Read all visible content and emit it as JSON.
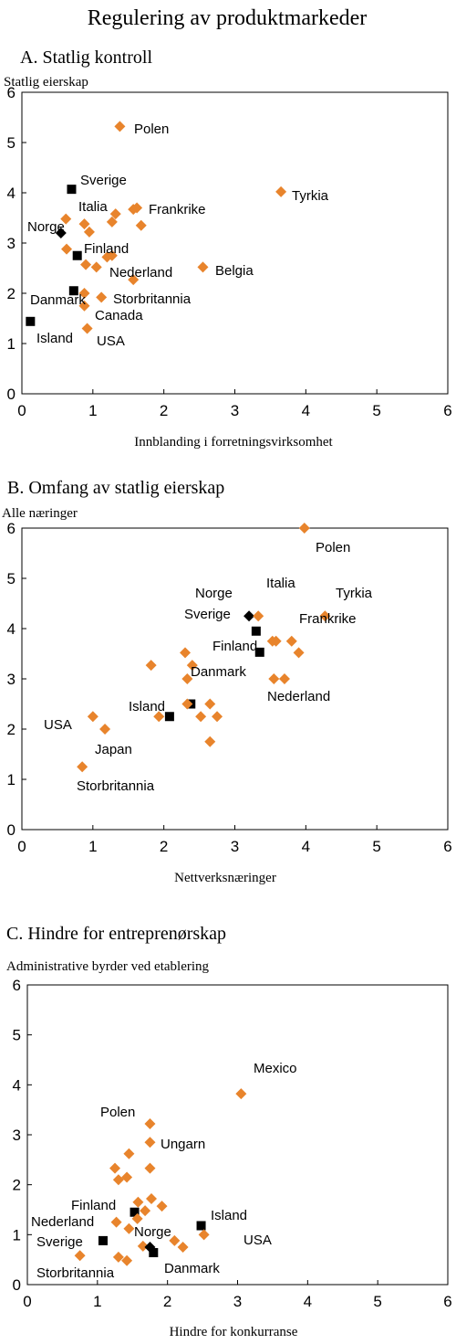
{
  "title": "Regulering av produktmarkeder",
  "colors": {
    "orange": "#E8842C",
    "black": "#000000"
  },
  "chart_data": [
    {
      "type": "scatter",
      "title": "A. Statlig kontroll",
      "ylabel": "Statlig eierskap",
      "xlabel": "Innblanding i forretningsvirksomhet",
      "xlim": [
        0,
        6
      ],
      "ylim": [
        0,
        6
      ],
      "xticks": [
        0,
        1,
        2,
        3,
        4,
        5,
        6
      ],
      "yticks": [
        0,
        1,
        2,
        3,
        4,
        5,
        6
      ],
      "points": [
        {
          "x": 1.38,
          "y": 5.32,
          "color": "orange",
          "marker": "diamond",
          "label": "Polen"
        },
        {
          "x": 3.65,
          "y": 4.02,
          "color": "orange",
          "marker": "diamond",
          "label": "Tyrkia"
        },
        {
          "x": 0.7,
          "y": 4.07,
          "color": "black",
          "marker": "square",
          "label": "Sverige"
        },
        {
          "x": 0.62,
          "y": 3.48,
          "color": "orange",
          "marker": "diamond"
        },
        {
          "x": 0.88,
          "y": 3.38,
          "color": "orange",
          "marker": "diamond",
          "label": "Italia"
        },
        {
          "x": 0.95,
          "y": 3.22,
          "color": "orange",
          "marker": "diamond"
        },
        {
          "x": 0.55,
          "y": 3.2,
          "color": "black",
          "marker": "diamond",
          "label": "Norge"
        },
        {
          "x": 1.32,
          "y": 3.58,
          "color": "orange",
          "marker": "diamond"
        },
        {
          "x": 1.27,
          "y": 3.42,
          "color": "orange",
          "marker": "diamond"
        },
        {
          "x": 1.57,
          "y": 3.67,
          "color": "orange",
          "marker": "diamond",
          "label": "Frankrike"
        },
        {
          "x": 1.62,
          "y": 3.7,
          "color": "orange",
          "marker": "diamond"
        },
        {
          "x": 1.68,
          "y": 3.35,
          "color": "orange",
          "marker": "diamond"
        },
        {
          "x": 0.63,
          "y": 2.88,
          "color": "orange",
          "marker": "diamond"
        },
        {
          "x": 0.78,
          "y": 2.75,
          "color": "black",
          "marker": "square",
          "label": "Finland"
        },
        {
          "x": 0.9,
          "y": 2.57,
          "color": "orange",
          "marker": "diamond"
        },
        {
          "x": 1.05,
          "y": 2.52,
          "color": "orange",
          "marker": "diamond"
        },
        {
          "x": 1.2,
          "y": 2.72,
          "color": "orange",
          "marker": "diamond"
        },
        {
          "x": 1.27,
          "y": 2.75,
          "color": "orange",
          "marker": "diamond",
          "label": "Nederland"
        },
        {
          "x": 2.55,
          "y": 2.52,
          "color": "orange",
          "marker": "diamond",
          "label": "Belgia"
        },
        {
          "x": 1.57,
          "y": 2.27,
          "color": "orange",
          "marker": "diamond"
        },
        {
          "x": 0.73,
          "y": 2.05,
          "color": "black",
          "marker": "square",
          "label": "Danmark"
        },
        {
          "x": 0.88,
          "y": 2.0,
          "color": "orange",
          "marker": "diamond"
        },
        {
          "x": 1.12,
          "y": 1.92,
          "color": "orange",
          "marker": "diamond",
          "label": "Storbritannia"
        },
        {
          "x": 0.88,
          "y": 1.75,
          "color": "orange",
          "marker": "diamond",
          "label": "Canada"
        },
        {
          "x": 0.12,
          "y": 1.44,
          "color": "black",
          "marker": "square",
          "label": "Island"
        },
        {
          "x": 0.92,
          "y": 1.3,
          "color": "orange",
          "marker": "diamond",
          "label": "USA"
        }
      ]
    },
    {
      "type": "scatter",
      "title": "B. Omfang av statlig eierskap",
      "ylabel": "Alle næringer",
      "xlabel": "Nettverksnæringer",
      "xlim": [
        0,
        6
      ],
      "ylim": [
        0,
        6
      ],
      "xticks": [
        0,
        1,
        2,
        3,
        4,
        5,
        6
      ],
      "yticks": [
        0,
        1,
        2,
        3,
        4,
        5,
        6
      ],
      "points": [
        {
          "x": 3.98,
          "y": 6.0,
          "color": "orange",
          "marker": "diamond",
          "label": "Polen"
        },
        {
          "x": 3.2,
          "y": 4.25,
          "color": "black",
          "marker": "diamond",
          "label": "Norge"
        },
        {
          "x": 3.33,
          "y": 4.25,
          "color": "orange",
          "marker": "diamond",
          "label": "Italia"
        },
        {
          "x": 4.27,
          "y": 4.25,
          "color": "orange",
          "marker": "diamond",
          "label": "Tyrkia"
        },
        {
          "x": 3.3,
          "y": 3.95,
          "color": "black",
          "marker": "square",
          "label": "Sverige"
        },
        {
          "x": 3.53,
          "y": 3.75,
          "color": "orange",
          "marker": "diamond"
        },
        {
          "x": 3.58,
          "y": 3.75,
          "color": "orange",
          "marker": "diamond"
        },
        {
          "x": 3.8,
          "y": 3.75,
          "color": "orange",
          "marker": "diamond",
          "label": "Frankrike"
        },
        {
          "x": 3.9,
          "y": 3.52,
          "color": "orange",
          "marker": "diamond"
        },
        {
          "x": 3.35,
          "y": 3.53,
          "color": "black",
          "marker": "square",
          "label": "Finland"
        },
        {
          "x": 1.82,
          "y": 3.27,
          "color": "orange",
          "marker": "diamond"
        },
        {
          "x": 2.3,
          "y": 3.52,
          "color": "orange",
          "marker": "diamond"
        },
        {
          "x": 2.4,
          "y": 3.27,
          "color": "orange",
          "marker": "diamond"
        },
        {
          "x": 2.33,
          "y": 3.0,
          "color": "orange",
          "marker": "diamond"
        },
        {
          "x": 3.55,
          "y": 3.0,
          "color": "orange",
          "marker": "diamond",
          "label": "Nederland"
        },
        {
          "x": 3.7,
          "y": 3.0,
          "color": "orange",
          "marker": "diamond"
        },
        {
          "x": 2.38,
          "y": 2.5,
          "color": "black",
          "marker": "square",
          "label": "Danmark"
        },
        {
          "x": 2.33,
          "y": 2.5,
          "color": "orange",
          "marker": "diamond"
        },
        {
          "x": 2.65,
          "y": 2.5,
          "color": "orange",
          "marker": "diamond"
        },
        {
          "x": 2.08,
          "y": 2.25,
          "color": "black",
          "marker": "square",
          "label": "Island"
        },
        {
          "x": 1.93,
          "y": 2.25,
          "color": "orange",
          "marker": "diamond"
        },
        {
          "x": 2.52,
          "y": 2.25,
          "color": "orange",
          "marker": "diamond"
        },
        {
          "x": 2.75,
          "y": 2.25,
          "color": "orange",
          "marker": "diamond"
        },
        {
          "x": 2.65,
          "y": 1.75,
          "color": "orange",
          "marker": "diamond"
        },
        {
          "x": 1.0,
          "y": 2.25,
          "color": "orange",
          "marker": "diamond",
          "label": "USA"
        },
        {
          "x": 1.17,
          "y": 2.0,
          "color": "orange",
          "marker": "diamond",
          "label": "Japan"
        },
        {
          "x": 0.85,
          "y": 1.25,
          "color": "orange",
          "marker": "diamond",
          "label": "Storbritannia"
        }
      ]
    },
    {
      "type": "scatter",
      "title": "C. Hindre for entreprenørskap",
      "ylabel": "Administrative byrder ved etablering",
      "xlabel": "Hindre for konkurranse",
      "xlim": [
        0,
        6
      ],
      "ylim": [
        0,
        6
      ],
      "xticks": [
        0,
        1,
        2,
        3,
        4,
        5,
        6
      ],
      "yticks": [
        0,
        1,
        2,
        3,
        4,
        5,
        6
      ],
      "points": [
        {
          "x": 3.05,
          "y": 3.82,
          "color": "orange",
          "marker": "diamond",
          "label": "Mexico"
        },
        {
          "x": 1.75,
          "y": 3.22,
          "color": "orange",
          "marker": "diamond",
          "label": "Polen"
        },
        {
          "x": 1.75,
          "y": 2.85,
          "color": "orange",
          "marker": "diamond",
          "label": "Ungarn"
        },
        {
          "x": 1.45,
          "y": 2.62,
          "color": "orange",
          "marker": "diamond"
        },
        {
          "x": 1.25,
          "y": 2.33,
          "color": "orange",
          "marker": "diamond"
        },
        {
          "x": 1.75,
          "y": 2.33,
          "color": "orange",
          "marker": "diamond"
        },
        {
          "x": 1.3,
          "y": 2.1,
          "color": "orange",
          "marker": "diamond"
        },
        {
          "x": 1.42,
          "y": 2.15,
          "color": "orange",
          "marker": "diamond"
        },
        {
          "x": 1.58,
          "y": 1.65,
          "color": "orange",
          "marker": "diamond"
        },
        {
          "x": 1.77,
          "y": 1.72,
          "color": "orange",
          "marker": "diamond"
        },
        {
          "x": 1.92,
          "y": 1.57,
          "color": "orange",
          "marker": "diamond"
        },
        {
          "x": 1.53,
          "y": 1.45,
          "color": "black",
          "marker": "square",
          "label": "Finland"
        },
        {
          "x": 1.68,
          "y": 1.48,
          "color": "orange",
          "marker": "diamond"
        },
        {
          "x": 1.57,
          "y": 1.32,
          "color": "orange",
          "marker": "diamond"
        },
        {
          "x": 1.27,
          "y": 1.25,
          "color": "orange",
          "marker": "diamond",
          "label": "Nederland"
        },
        {
          "x": 1.45,
          "y": 1.12,
          "color": "orange",
          "marker": "diamond",
          "label": "Norge"
        },
        {
          "x": 2.48,
          "y": 1.18,
          "color": "black",
          "marker": "square",
          "label": "Island"
        },
        {
          "x": 2.52,
          "y": 1.0,
          "color": "orange",
          "marker": "diamond",
          "label": "USA"
        },
        {
          "x": 2.1,
          "y": 0.88,
          "color": "orange",
          "marker": "diamond"
        },
        {
          "x": 2.22,
          "y": 0.75,
          "color": "orange",
          "marker": "diamond"
        },
        {
          "x": 1.65,
          "y": 0.77,
          "color": "orange",
          "marker": "diamond"
        },
        {
          "x": 1.75,
          "y": 0.75,
          "color": "black",
          "marker": "diamond"
        },
        {
          "x": 1.8,
          "y": 0.64,
          "color": "black",
          "marker": "square",
          "label": "Danmark"
        },
        {
          "x": 1.08,
          "y": 0.88,
          "color": "black",
          "marker": "square",
          "label": "Sverige"
        },
        {
          "x": 0.75,
          "y": 0.58,
          "color": "orange",
          "marker": "diamond",
          "label": "Storbritannia"
        },
        {
          "x": 1.3,
          "y": 0.55,
          "color": "orange",
          "marker": "diamond"
        },
        {
          "x": 1.42,
          "y": 0.48,
          "color": "orange",
          "marker": "diamond"
        }
      ]
    }
  ]
}
